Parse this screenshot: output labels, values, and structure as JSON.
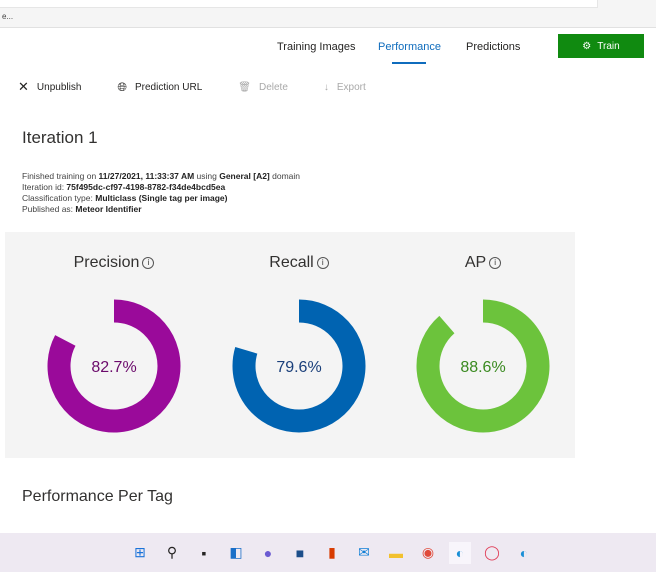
{
  "breadcrumb": "e...",
  "nav": {
    "tabs": [
      {
        "label": "Training Images"
      },
      {
        "label": "Performance",
        "active": true
      },
      {
        "label": "Predictions"
      }
    ],
    "train_label": "Train"
  },
  "toolbar": {
    "unpublish": "Unpublish",
    "prediction_url": "Prediction URL",
    "delete": "Delete",
    "export": "Export"
  },
  "iteration": {
    "title": "Iteration 1",
    "finished_prefix": "Finished training on ",
    "finished_date": "11/27/2021, 11:33:37 AM",
    "using": " using ",
    "domain": "General [A2]",
    "domain_suffix": " domain",
    "id_label": "Iteration id: ",
    "id": "75f495dc-cf97-4198-8782-f34de4bcd5ea",
    "class_label": "Classification type: ",
    "class_type": "Multiclass (Single tag per image)",
    "published_label": "Published as: ",
    "published": "Meteor Identifier"
  },
  "metrics": [
    {
      "name": "Precision",
      "value": 82.7,
      "label": "82.7%",
      "color": "#9a0a9a",
      "text_color": "#6b0a6b"
    },
    {
      "name": "Recall",
      "value": 79.6,
      "label": "79.6%",
      "color": "#0063b1",
      "text_color": "#1a3f7a"
    },
    {
      "name": "AP",
      "value": 88.6,
      "label": "88.6%",
      "color": "#6cc33c",
      "text_color": "#3a8a20"
    }
  ],
  "info_glyph": "i",
  "section2": "Performance Per Tag",
  "taskbar": [
    "start",
    "search",
    "task-view",
    "widgets",
    "teams-chat",
    "store",
    "office",
    "mail",
    "file-explorer",
    "chrome",
    "edge",
    "opera",
    "edge-beta"
  ]
}
